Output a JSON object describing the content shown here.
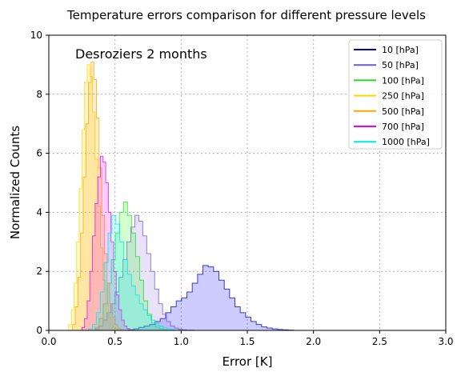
{
  "chart_data": {
    "type": "area",
    "title": "Temperature errors comparison for different pressure levels",
    "xlabel": "Error [K]",
    "ylabel": "Normalized Counts",
    "annotation": "Desroziers 2 months",
    "xlim": [
      0,
      3
    ],
    "ylim": [
      0,
      10
    ],
    "xticks": [
      "0.0",
      "0.5",
      "1.0",
      "1.5",
      "2.0",
      "2.5",
      "3.0"
    ],
    "yticks": [
      "0",
      "2",
      "4",
      "6",
      "8",
      "10"
    ],
    "grid": true,
    "legend_position": "top-right",
    "series": [
      {
        "name": "10 [hPa]",
        "color": "#0000cc",
        "fill": "#0000ff",
        "edges": [
          0.6,
          1.85
        ],
        "values": [
          0.02,
          0.05,
          0.1,
          0.15,
          0.2,
          0.3,
          0.4,
          0.6,
          0.8,
          1.0,
          1.1,
          1.3,
          1.6,
          1.9,
          2.2,
          2.15,
          2.0,
          1.7,
          1.4,
          1.1,
          0.8,
          0.6,
          0.45,
          0.3,
          0.2,
          0.12,
          0.08,
          0.05,
          0.03,
          0.02,
          0.01
        ]
      },
      {
        "name": "50 [hPa]",
        "color": "#6a5acd",
        "fill": "#9370db",
        "edges": [
          0.35,
          1.1
        ],
        "values": [
          0.05,
          0.15,
          0.35,
          0.6,
          0.9,
          1.3,
          1.8,
          2.4,
          3.0,
          3.5,
          3.9,
          3.7,
          3.2,
          2.6,
          2.0,
          1.4,
          0.9,
          0.55,
          0.3,
          0.15,
          0.08,
          0.04,
          0.02,
          0.01,
          0.01
        ]
      },
      {
        "name": "100 [hPa]",
        "color": "#22dd22",
        "fill": "#22ff22",
        "edges": [
          0.35,
          0.9
        ],
        "values": [
          0.1,
          0.4,
          0.9,
          1.6,
          2.4,
          3.3,
          4.0,
          4.35,
          3.9,
          3.3,
          2.5,
          1.7,
          1.0,
          0.55,
          0.25,
          0.1,
          0.05,
          0.02
        ]
      },
      {
        "name": "250 [hPa]",
        "color": "#ffd700",
        "fill": "#ffd700",
        "edges": [
          0.15,
          0.55
        ],
        "values": [
          0.2,
          0.7,
          1.6,
          3.0,
          4.8,
          6.8,
          8.4,
          9.0,
          8.6,
          7.4,
          5.8,
          4.2,
          2.8,
          1.7,
          0.9,
          0.45,
          0.2,
          0.08,
          0.03,
          0.01
        ]
      },
      {
        "name": "500 [hPa]",
        "color": "#ffa500",
        "fill": "#ffa500",
        "edges": [
          0.18,
          0.58
        ],
        "values": [
          0.2,
          0.8,
          1.8,
          3.3,
          5.2,
          7.0,
          8.4,
          9.1,
          8.5,
          7.2,
          5.5,
          3.9,
          2.6,
          1.6,
          0.9,
          0.45,
          0.2,
          0.08,
          0.03,
          0.01
        ]
      },
      {
        "name": "700 [hPa]",
        "color": "#ee00ee",
        "fill": "#ff00ff",
        "edges": [
          0.25,
          0.65
        ],
        "values": [
          0.1,
          0.4,
          1.0,
          2.0,
          3.2,
          4.3,
          5.2,
          5.9,
          5.7,
          5.0,
          4.0,
          3.0,
          2.0,
          1.2,
          0.7,
          0.35,
          0.15,
          0.06,
          0.02,
          0.01
        ]
      },
      {
        "name": "1000 [hPa]",
        "color": "#00e5e5",
        "fill": "#00ffff",
        "edges": [
          0.3,
          0.95
        ],
        "values": [
          0.05,
          0.2,
          0.6,
          1.3,
          2.3,
          3.3,
          3.9,
          3.6,
          3.0,
          2.4,
          1.9,
          1.5,
          1.2,
          0.9,
          0.7,
          0.5,
          0.35,
          0.25,
          0.15,
          0.1,
          0.05,
          0.03
        ]
      }
    ]
  }
}
